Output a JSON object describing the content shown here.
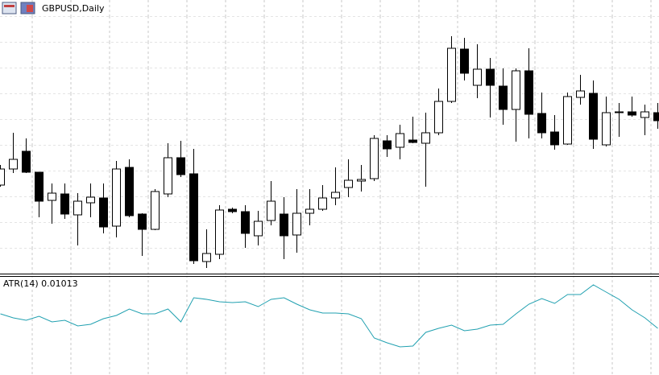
{
  "chart_data": [
    {
      "type": "candlestick",
      "title": "GBPUSD,Daily",
      "open": [
        110,
        130,
        152,
        126,
        91,
        99,
        73,
        88,
        94,
        59,
        132,
        74,
        55,
        99,
        144,
        124,
        15,
        24,
        80,
        77,
        47,
        66,
        74,
        48,
        75,
        80,
        94,
        107,
        115,
        118,
        165,
        157,
        166,
        162,
        175,
        214,
        279,
        234,
        254,
        233,
        204,
        252,
        199,
        176,
        161,
        219,
        224,
        160,
        201,
        201,
        194,
        200
      ],
      "high": [
        135,
        175,
        168,
        126,
        112,
        112,
        100,
        112,
        112,
        140,
        142,
        75,
        105,
        162,
        165,
        155,
        55,
        85,
        82,
        85,
        78,
        115,
        95,
        105,
        105,
        110,
        132,
        142,
        135,
        172,
        172,
        185,
        195,
        200,
        230,
        295,
        293,
        285,
        268,
        255,
        255,
        280,
        225,
        197,
        225,
        247,
        240,
        220,
        212,
        220,
        210,
        212
      ],
      "low": [
        108,
        125,
        125,
        70,
        62,
        68,
        35,
        70,
        50,
        45,
        70,
        22,
        54,
        95,
        120,
        12,
        7,
        18,
        75,
        32,
        35,
        60,
        18,
        26,
        60,
        78,
        85,
        95,
        102,
        115,
        145,
        142,
        162,
        108,
        172,
        212,
        240,
        218,
        194,
        185,
        164,
        168,
        168,
        154,
        160,
        210,
        155,
        158,
        170,
        195,
        172,
        180
      ],
      "close": [
        130,
        142,
        126,
        90,
        100,
        74,
        90,
        95,
        58,
        130,
        72,
        55,
        102,
        144,
        123,
        16,
        25,
        79,
        77,
        50,
        65,
        90,
        47,
        75,
        80,
        94,
        101,
        116,
        117,
        168,
        155,
        174,
        163,
        175,
        214,
        280,
        249,
        254,
        234,
        204,
        252,
        198,
        175,
        160,
        220,
        227,
        167,
        200,
        200,
        197,
        201,
        190
      ],
      "ylim": [
        0,
        340
      ],
      "up_color": "#ffffff",
      "down_color": "#000000"
    },
    {
      "type": "line",
      "title": "ATR(14) 0.01013",
      "values": [
        72,
        67,
        64,
        69,
        62,
        64,
        57,
        59,
        66,
        70,
        78,
        72,
        72,
        78,
        62,
        92,
        90,
        87,
        86,
        87,
        81,
        90,
        92,
        84,
        77,
        73,
        73,
        72,
        66,
        42,
        36,
        31,
        32,
        49,
        54,
        58,
        51,
        53,
        58,
        59,
        72,
        84,
        91,
        85,
        96,
        96,
        108,
        99,
        90,
        77,
        67,
        54
      ],
      "color": "#20a0b0",
      "ylim": [
        0,
        117
      ]
    }
  ]
}
